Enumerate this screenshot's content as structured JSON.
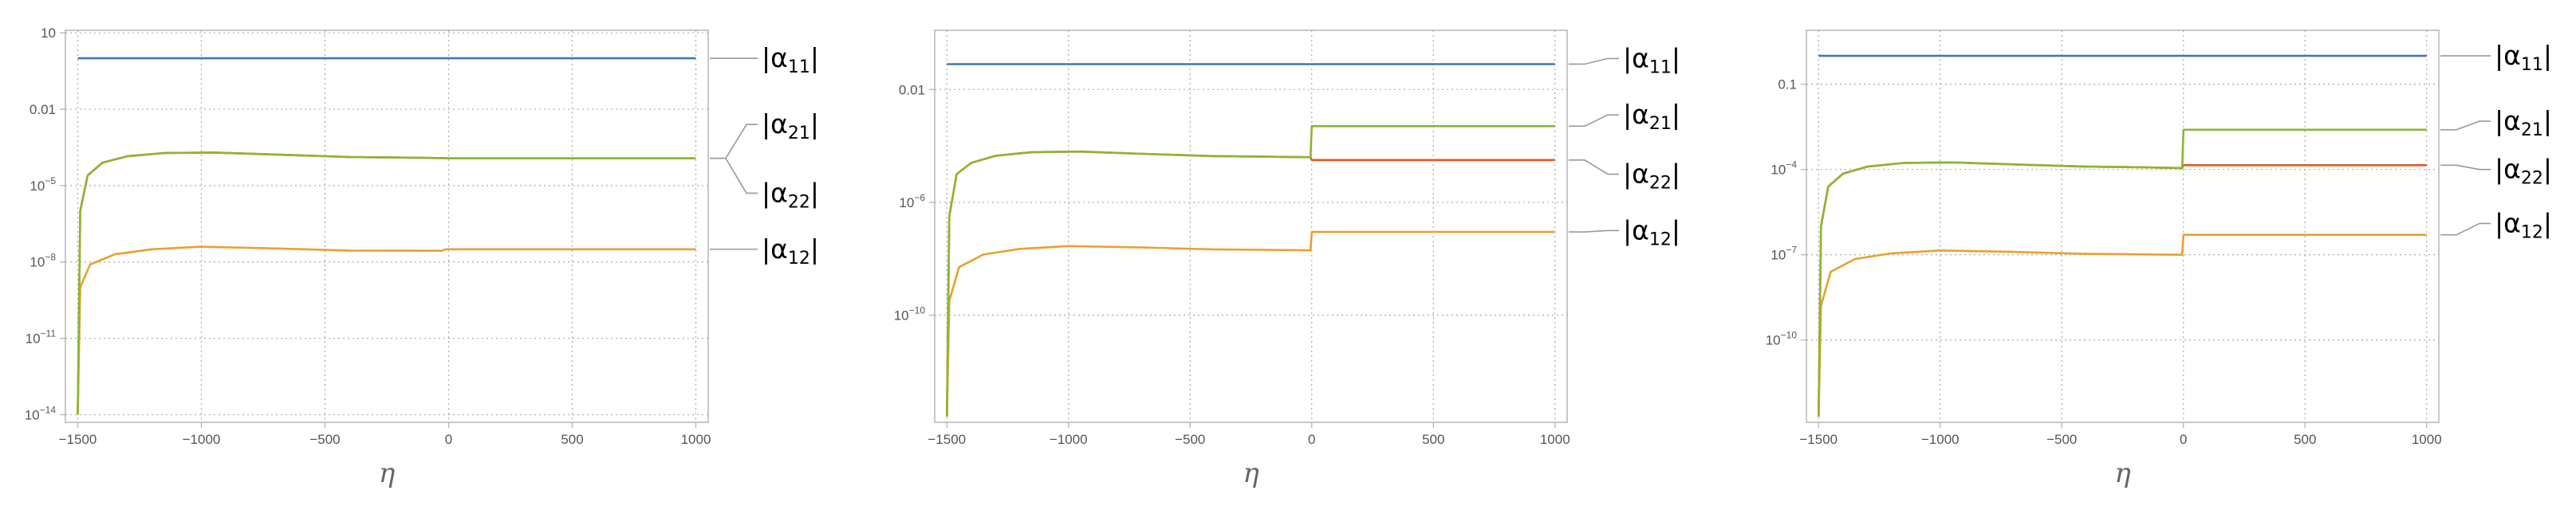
{
  "palette": {
    "a11": "#3f78b4",
    "a21": "#8db534",
    "a22": "#e2592a",
    "a12": "#e8a12e",
    "grid": "#aaaaaa",
    "frame": "#b5b5b5",
    "label_line": "#9a9a9a"
  },
  "chart_data": [
    {
      "type": "line",
      "y_scale": "log",
      "xlabel": "η",
      "xlim": [
        -1550,
        1050
      ],
      "ylim_log10": [
        -14.3,
        1.1
      ],
      "x_ticks": [
        "-1500",
        "-1000",
        "-500",
        "0",
        "500",
        "1000"
      ],
      "x_tick_values": [
        -1500,
        -1000,
        -500,
        0,
        500,
        1000
      ],
      "y_ticks": [
        {
          "log10": 1,
          "base": "10",
          "exp": ""
        },
        {
          "log10": -2,
          "base": "0.01",
          "exp": ""
        },
        {
          "log10": -5,
          "base": "10",
          "exp": "-5"
        },
        {
          "log10": -8,
          "base": "10",
          "exp": "-8"
        },
        {
          "log10": -11,
          "base": "10",
          "exp": "-11"
        },
        {
          "log10": -14,
          "base": "10",
          "exp": "-14"
        }
      ],
      "grid": true,
      "series": [
        {
          "name": "|α11|",
          "sub": "11",
          "color_key": "a11",
          "points": [
            [
              -1500,
              0
            ],
            [
              1000,
              0
            ]
          ]
        },
        {
          "name": "|α21|",
          "sub": "21",
          "color_key": "a21",
          "points": [
            [
              -1500,
              -14
            ],
            [
              -1490,
              -6
            ],
            [
              -1460,
              -4.6
            ],
            [
              -1400,
              -4.1
            ],
            [
              -1300,
              -3.85
            ],
            [
              -1150,
              -3.72
            ],
            [
              -950,
              -3.7
            ],
            [
              -700,
              -3.78
            ],
            [
              -400,
              -3.88
            ],
            [
              -200,
              -3.9
            ],
            [
              -20,
              -3.92
            ],
            [
              0,
              -3.93
            ],
            [
              1000,
              -3.93
            ]
          ]
        },
        {
          "name": "|α22|",
          "sub": "22",
          "color_key": "a22",
          "points": [
            [
              -1500,
              -14
            ],
            [
              -1490,
              -6
            ],
            [
              -1460,
              -4.6
            ],
            [
              -1400,
              -4.1
            ],
            [
              -1300,
              -3.85
            ],
            [
              -1150,
              -3.72
            ],
            [
              -950,
              -3.7
            ],
            [
              -700,
              -3.78
            ],
            [
              -400,
              -3.88
            ],
            [
              -200,
              -3.9
            ],
            [
              -20,
              -3.92
            ],
            [
              0,
              -3.93
            ],
            [
              1000,
              -3.93
            ]
          ]
        },
        {
          "name": "|α12|",
          "sub": "12",
          "color_key": "a12",
          "points": [
            [
              -1500,
              -14
            ],
            [
              -1490,
              -9
            ],
            [
              -1450,
              -8.1
            ],
            [
              -1350,
              -7.7
            ],
            [
              -1200,
              -7.5
            ],
            [
              -1000,
              -7.4
            ],
            [
              -700,
              -7.47
            ],
            [
              -400,
              -7.55
            ],
            [
              -30,
              -7.56
            ],
            [
              -10,
              -7.5
            ],
            [
              1000,
              -7.5
            ]
          ]
        }
      ],
      "legend": [
        {
          "sub": "11",
          "label_y_log10": 0.0,
          "lines": [
            {
              "from_log10": 0
            }
          ]
        },
        {
          "sub": "21",
          "label_y_log10": -2.6,
          "lines": [
            {
              "from_log10": -3.93
            }
          ]
        },
        {
          "sub": "22",
          "label_y_log10": -5.3,
          "lines": [
            {
              "from_log10": -3.93
            }
          ]
        },
        {
          "sub": "12",
          "label_y_log10": -7.5,
          "lines": [
            {
              "from_log10": -7.5
            }
          ]
        }
      ]
    },
    {
      "type": "line",
      "y_scale": "log",
      "xlabel": "η",
      "xlim": [
        -1550,
        1050
      ],
      "ylim_log10": [
        -13.8,
        0.1
      ],
      "x_ticks": [
        "-1500",
        "-1000",
        "-500",
        "0",
        "500",
        "1000"
      ],
      "x_tick_values": [
        -1500,
        -1000,
        -500,
        0,
        500,
        1000
      ],
      "y_ticks": [
        {
          "log10": -2,
          "base": "0.01",
          "exp": ""
        },
        {
          "log10": -6,
          "base": "10",
          "exp": "-6"
        },
        {
          "log10": -10,
          "base": "10",
          "exp": "-10"
        }
      ],
      "grid": true,
      "series": [
        {
          "name": "|α11|",
          "sub": "11",
          "color_key": "a11",
          "points": [
            [
              -1500,
              -1.1
            ],
            [
              1000,
              -1.1
            ]
          ]
        },
        {
          "name": "|α21|",
          "sub": "21",
          "color_key": "a21",
          "points": [
            [
              -1500,
              -13.6
            ],
            [
              -1490,
              -6.5
            ],
            [
              -1460,
              -5.0
            ],
            [
              -1400,
              -4.6
            ],
            [
              -1300,
              -4.35
            ],
            [
              -1150,
              -4.22
            ],
            [
              -950,
              -4.2
            ],
            [
              -700,
              -4.28
            ],
            [
              -400,
              -4.36
            ],
            [
              -200,
              -4.38
            ],
            [
              -5,
              -4.4
            ],
            [
              0,
              -3.3
            ],
            [
              1000,
              -3.3
            ]
          ]
        },
        {
          "name": "|α22|",
          "sub": "22",
          "color_key": "a22",
          "points": [
            [
              -1500,
              -13.6
            ],
            [
              -1490,
              -6.5
            ],
            [
              -1460,
              -5.0
            ],
            [
              -1400,
              -4.6
            ],
            [
              -1300,
              -4.35
            ],
            [
              -1150,
              -4.22
            ],
            [
              -950,
              -4.2
            ],
            [
              -700,
              -4.28
            ],
            [
              -400,
              -4.36
            ],
            [
              -200,
              -4.38
            ],
            [
              -5,
              -4.4
            ],
            [
              0,
              -4.5
            ],
            [
              1000,
              -4.5
            ]
          ]
        },
        {
          "name": "|α12|",
          "sub": "12",
          "color_key": "a12",
          "points": [
            [
              -1500,
              -13.6
            ],
            [
              -1490,
              -9.5
            ],
            [
              -1450,
              -8.3
            ],
            [
              -1350,
              -7.85
            ],
            [
              -1200,
              -7.65
            ],
            [
              -1000,
              -7.55
            ],
            [
              -700,
              -7.6
            ],
            [
              -400,
              -7.67
            ],
            [
              -5,
              -7.7
            ],
            [
              0,
              -7.05
            ],
            [
              1000,
              -7.05
            ]
          ]
        }
      ],
      "legend": [
        {
          "sub": "11",
          "label_y_log10": -0.9,
          "lines": [
            {
              "from_log10": -1.1
            }
          ]
        },
        {
          "sub": "21",
          "label_y_log10": -2.9,
          "lines": [
            {
              "from_log10": -3.3
            }
          ]
        },
        {
          "sub": "22",
          "label_y_log10": -5.0,
          "lines": [
            {
              "from_log10": -4.5
            }
          ]
        },
        {
          "sub": "12",
          "label_y_log10": -7.0,
          "lines": [
            {
              "from_log10": -7.05
            }
          ]
        }
      ]
    },
    {
      "type": "line",
      "y_scale": "log",
      "xlabel": "η",
      "xlim": [
        -1550,
        1050
      ],
      "ylim_log10": [
        -12.9,
        0.9
      ],
      "x_ticks": [
        "-1500",
        "-1000",
        "-500",
        "0",
        "500",
        "1000"
      ],
      "x_tick_values": [
        -1500,
        -1000,
        -500,
        0,
        500,
        1000
      ],
      "y_ticks": [
        {
          "log10": -1,
          "base": "0.1",
          "exp": ""
        },
        {
          "log10": -4,
          "base": "10",
          "exp": "-4"
        },
        {
          "log10": -7,
          "base": "10",
          "exp": "-7"
        },
        {
          "log10": -10,
          "base": "10",
          "exp": "-10"
        }
      ],
      "grid": true,
      "series": [
        {
          "name": "|α11|",
          "sub": "11",
          "color_key": "a11",
          "points": [
            [
              -1500,
              0.0
            ],
            [
              1000,
              0.0
            ]
          ]
        },
        {
          "name": "|α21|",
          "sub": "21",
          "color_key": "a21",
          "points": [
            [
              -1500,
              -12.7
            ],
            [
              -1490,
              -6.0
            ],
            [
              -1460,
              -4.6
            ],
            [
              -1400,
              -4.15
            ],
            [
              -1300,
              -3.9
            ],
            [
              -1150,
              -3.77
            ],
            [
              -950,
              -3.75
            ],
            [
              -700,
              -3.82
            ],
            [
              -400,
              -3.9
            ],
            [
              -200,
              -3.92
            ],
            [
              -5,
              -3.95
            ],
            [
              0,
              -2.6
            ],
            [
              1000,
              -2.6
            ]
          ]
        },
        {
          "name": "|α22|",
          "sub": "22",
          "color_key": "a22",
          "points": [
            [
              -1500,
              -12.7
            ],
            [
              -1490,
              -6.0
            ],
            [
              -1460,
              -4.6
            ],
            [
              -1400,
              -4.15
            ],
            [
              -1300,
              -3.9
            ],
            [
              -1150,
              -3.77
            ],
            [
              -950,
              -3.75
            ],
            [
              -700,
              -3.82
            ],
            [
              -400,
              -3.9
            ],
            [
              -200,
              -3.92
            ],
            [
              -5,
              -3.95
            ],
            [
              0,
              -3.85
            ],
            [
              1000,
              -3.85
            ]
          ]
        },
        {
          "name": "|α12|",
          "sub": "12",
          "color_key": "a12",
          "points": [
            [
              -1500,
              -12.7
            ],
            [
              -1490,
              -8.8
            ],
            [
              -1450,
              -7.6
            ],
            [
              -1350,
              -7.15
            ],
            [
              -1200,
              -6.95
            ],
            [
              -1000,
              -6.85
            ],
            [
              -700,
              -6.9
            ],
            [
              -400,
              -6.97
            ],
            [
              -5,
              -7.0
            ],
            [
              0,
              -6.3
            ],
            [
              1000,
              -6.3
            ]
          ]
        }
      ],
      "legend": [
        {
          "sub": "11",
          "label_y_log10": 0.0,
          "lines": [
            {
              "from_log10": 0.0
            }
          ]
        },
        {
          "sub": "21",
          "label_y_log10": -2.3,
          "lines": [
            {
              "from_log10": -2.6
            }
          ]
        },
        {
          "sub": "22",
          "label_y_log10": -4.0,
          "lines": [
            {
              "from_log10": -3.85
            }
          ]
        },
        {
          "sub": "12",
          "label_y_log10": -5.9,
          "lines": [
            {
              "from_log10": -6.3
            }
          ]
        }
      ]
    }
  ]
}
